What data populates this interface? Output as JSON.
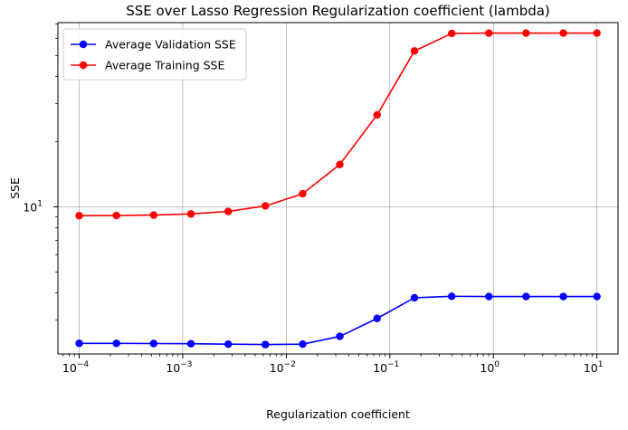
{
  "chart_data": {
    "type": "line",
    "title": "SSE over Lasso Regression Regularization coefficient (lambda)",
    "xlabel": "Regularization coefficient",
    "ylabel": "SSE",
    "x_scale": "log",
    "y_scale": "log",
    "xlim": [
      6.23e-05,
      16.0
    ],
    "ylim": [
      2.09,
      71.0
    ],
    "grid": true,
    "legend_position": "upper-left",
    "x_ticks": [
      {
        "value": 0.0001,
        "base": "10",
        "exp": "−4"
      },
      {
        "value": 0.001,
        "base": "10",
        "exp": "−3"
      },
      {
        "value": 0.01,
        "base": "10",
        "exp": "−2"
      },
      {
        "value": 0.1,
        "base": "10",
        "exp": "−1"
      },
      {
        "value": 1,
        "base": "10",
        "exp": "0"
      },
      {
        "value": 10,
        "base": "10",
        "exp": "1"
      }
    ],
    "y_ticks": [
      {
        "value": 10,
        "base": "10",
        "exp": "1"
      }
    ],
    "x": [
      0.0001,
      0.000229,
      0.000524,
      0.0012,
      0.00275,
      0.00628,
      0.0144,
      0.0329,
      0.0754,
      0.173,
      0.396,
      0.905,
      2.07,
      4.74,
      10.0
    ],
    "series": [
      {
        "name": "Average Validation SSE",
        "color": "#0000ff",
        "values": [
          2.34,
          2.34,
          2.335,
          2.33,
          2.32,
          2.31,
          2.32,
          2.52,
          3.05,
          3.8,
          3.86,
          3.85,
          3.85,
          3.85,
          3.85
        ]
      },
      {
        "name": "Average Training SSE",
        "color": "#ff0000",
        "values": [
          9.1,
          9.12,
          9.16,
          9.27,
          9.52,
          10.1,
          11.5,
          15.7,
          26.6,
          52.5,
          63.3,
          63.5,
          63.5,
          63.5,
          63.5
        ]
      }
    ]
  }
}
